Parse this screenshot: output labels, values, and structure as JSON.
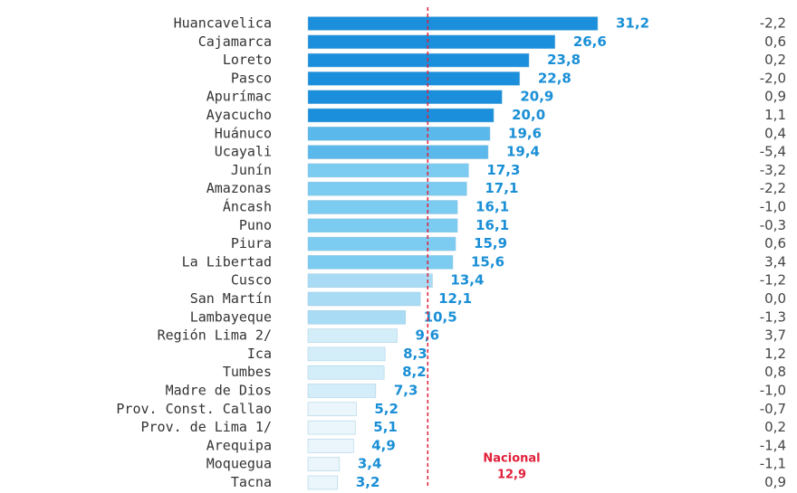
{
  "chart_data": {
    "type": "bar",
    "categories": [
      "Huancavelica",
      "Cajamarca",
      "Loreto",
      "Pasco",
      "Apurímac",
      "Ayacucho",
      "Huánuco",
      "Ucayali",
      "Junín",
      "Amazonas",
      "Áncash",
      "Puno",
      "Piura",
      "La Libertad",
      "Cusco",
      "San Martín",
      "Lambayeque",
      "Región Lima  2/",
      "Ica",
      "Tumbes",
      "Madre de Dios",
      "Prov. Const. Callao",
      "Prov. de Lima  1/",
      "Arequipa",
      "Moquegua",
      "Tacna"
    ],
    "values": [
      31.2,
      26.6,
      23.8,
      22.8,
      20.9,
      20.0,
      19.6,
      19.4,
      17.3,
      17.1,
      16.1,
      16.1,
      15.9,
      15.6,
      13.4,
      12.1,
      10.5,
      9.6,
      8.3,
      8.2,
      7.3,
      5.2,
      5.1,
      4.9,
      3.4,
      3.2
    ],
    "value_labels": [
      "31,2",
      "26,6",
      "23,8",
      "22,8",
      "20,9",
      "20,0",
      "19,6",
      "19,4",
      "17,3",
      "17,1",
      "16,1",
      "16,1",
      "15,9",
      "15,6",
      "13,4",
      "12,1",
      "10,5",
      "9,6",
      "8,3",
      "8,2",
      "7,3",
      "5,2",
      "5,1",
      "4,9",
      "3,4",
      "3,2"
    ],
    "changes": [
      "-2,2",
      "0,6",
      "0,2",
      "-2,0",
      "0,9",
      "1,1",
      "0,4",
      "-5,4",
      "-3,2",
      "-2,2",
      "-1,0",
      "-0,3",
      "0,6",
      "3,4",
      "-1,2",
      "0,0",
      "-1,3",
      "3,7",
      "1,2",
      "0,8",
      "-1,0",
      "-0,7",
      "0,2",
      "-1,4",
      "-1,1",
      "0,9"
    ],
    "colors": [
      "#1b8fdb",
      "#1b8fdb",
      "#1b8fdb",
      "#1b8fdb",
      "#1b8fdb",
      "#1b8fdb",
      "#5bb8ea",
      "#5bb8ea",
      "#7ccbf0",
      "#7ccbf0",
      "#7ccbf0",
      "#7ccbf0",
      "#7ccbf0",
      "#7ccbf0",
      "#a9dcf4",
      "#a9dcf4",
      "#a9dcf4",
      "#d4eef9",
      "#d4eef9",
      "#d4eef9",
      "#d4eef9",
      "#eaf6fb",
      "#eaf6fb",
      "#eaf6fb",
      "#eaf6fb",
      "#eaf6fb"
    ],
    "reference": {
      "label": "Nacional",
      "value": 12.9,
      "value_label": "12,9",
      "color": "#e0203a"
    }
  }
}
